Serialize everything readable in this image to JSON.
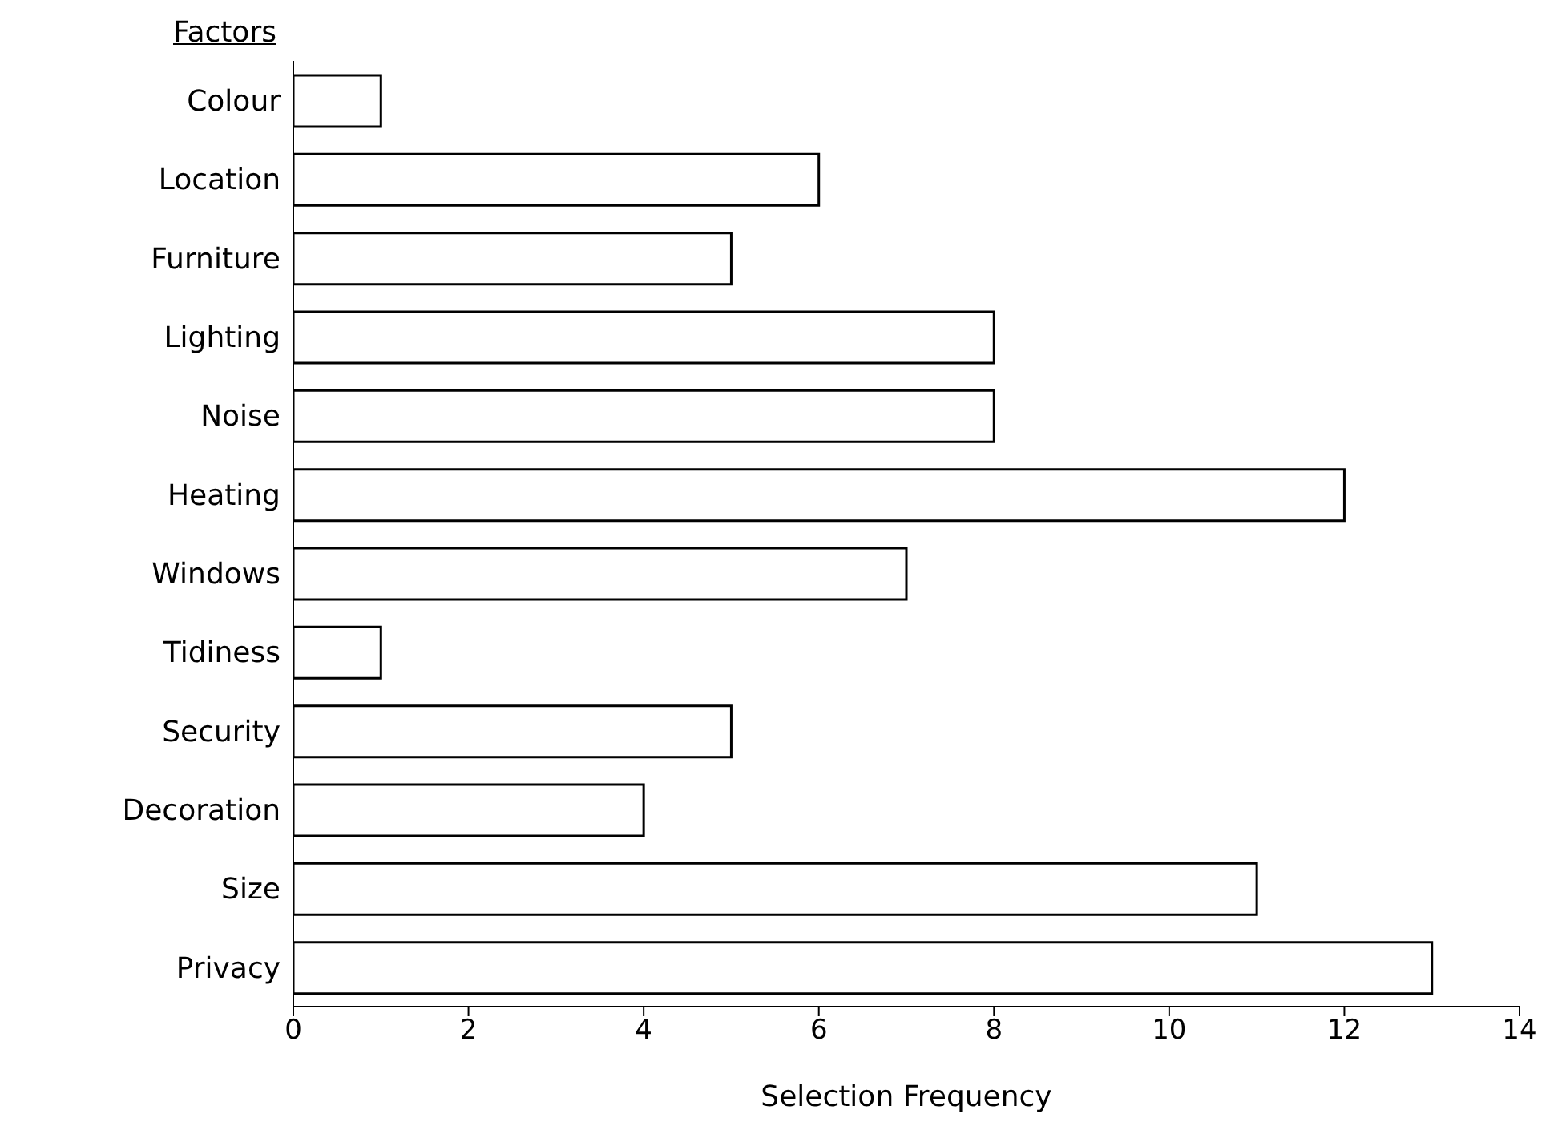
{
  "chart_data": {
    "type": "bar",
    "orientation": "horizontal",
    "ylabel": "Factors",
    "xlabel": "Selection Frequency",
    "categories": [
      "Colour",
      "Location",
      "Furniture",
      "Lighting",
      "Noise",
      "Heating",
      "Windows",
      "Tidiness",
      "Security",
      "Decoration",
      "Size",
      "Privacy"
    ],
    "values": [
      1,
      6,
      5,
      8,
      8,
      12,
      7,
      1,
      5,
      4,
      11,
      13
    ],
    "color": "#ffffff",
    "xlim": [
      0,
      14
    ],
    "xticks": [
      0,
      2,
      4,
      6,
      8,
      10,
      12,
      14
    ],
    "grid": false,
    "legend": false
  }
}
